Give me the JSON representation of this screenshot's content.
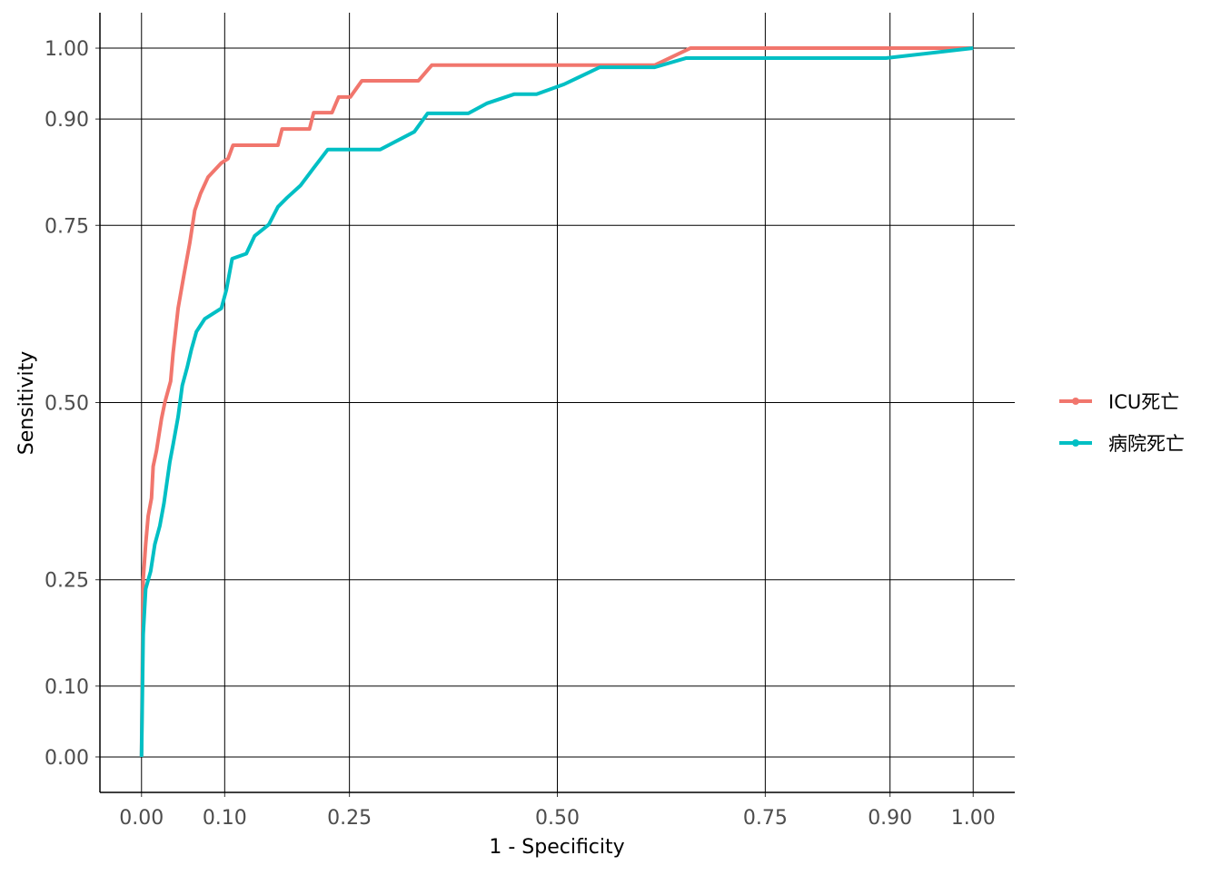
{
  "chart_data": {
    "type": "line",
    "x_label": "1 - Specificity",
    "y_label": "Sensitivity",
    "xlim": [
      -0.05,
      1.05
    ],
    "ylim": [
      -0.05,
      1.05
    ],
    "xticks": [
      {
        "value": 0,
        "label": "0.00"
      },
      {
        "value": 0.1,
        "label": "0.10"
      },
      {
        "value": 0.25,
        "label": "0.25"
      },
      {
        "value": 0.5,
        "label": "0.50"
      },
      {
        "value": 0.75,
        "label": "0.75"
      },
      {
        "value": 0.9,
        "label": "0.90"
      },
      {
        "value": 1,
        "label": "1.00"
      }
    ],
    "yticks": [
      {
        "value": 0,
        "label": "0.00"
      },
      {
        "value": 0.1,
        "label": "0.10"
      },
      {
        "value": 0.25,
        "label": "0.25"
      },
      {
        "value": 0.5,
        "label": "0.50"
      },
      {
        "value": 0.75,
        "label": "0.75"
      },
      {
        "value": 0.9,
        "label": "0.90"
      },
      {
        "value": 1,
        "label": "1.00"
      }
    ],
    "grid": true,
    "legend": "right",
    "series": [
      {
        "name": "ICU死亡",
        "color": "#f1766d",
        "x": [
          0,
          0.002,
          0.005,
          0.008,
          0.012,
          0.014,
          0.018,
          0.024,
          0.028,
          0.035,
          0.038,
          0.044,
          0.051,
          0.058,
          0.064,
          0.071,
          0.08,
          0.096,
          0.104,
          0.11,
          0.164,
          0.169,
          0.202,
          0.207,
          0.229,
          0.237,
          0.251,
          0.265,
          0.333,
          0.349,
          0.617,
          0.66,
          1
        ],
        "values": [
          0,
          0.25,
          0.3,
          0.34,
          0.365,
          0.41,
          0.432,
          0.477,
          0.5,
          0.53,
          0.57,
          0.633,
          0.68,
          0.725,
          0.771,
          0.795,
          0.818,
          0.838,
          0.844,
          0.863,
          0.863,
          0.886,
          0.886,
          0.909,
          0.909,
          0.931,
          0.931,
          0.954,
          0.954,
          0.976,
          0.976,
          1,
          1
        ]
      },
      {
        "name": "病院死亡",
        "color": "#00bfc4",
        "x": [
          0,
          0.002,
          0.005,
          0.011,
          0.016,
          0.022,
          0.027,
          0.034,
          0.038,
          0.044,
          0.049,
          0.055,
          0.06,
          0.066,
          0.076,
          0.096,
          0.102,
          0.109,
          0.126,
          0.136,
          0.153,
          0.164,
          0.175,
          0.191,
          0.207,
          0.224,
          0.287,
          0.328,
          0.344,
          0.393,
          0.415,
          0.448,
          0.475,
          0.508,
          0.551,
          0.617,
          0.655,
          0.895,
          1
        ],
        "values": [
          0,
          0.173,
          0.237,
          0.262,
          0.3,
          0.326,
          0.358,
          0.416,
          0.441,
          0.48,
          0.524,
          0.55,
          0.575,
          0.6,
          0.618,
          0.633,
          0.659,
          0.703,
          0.71,
          0.735,
          0.751,
          0.776,
          0.789,
          0.806,
          0.831,
          0.857,
          0.857,
          0.882,
          0.908,
          0.908,
          0.922,
          0.935,
          0.935,
          0.949,
          0.973,
          0.973,
          0.986,
          0.986,
          1
        ]
      }
    ]
  }
}
